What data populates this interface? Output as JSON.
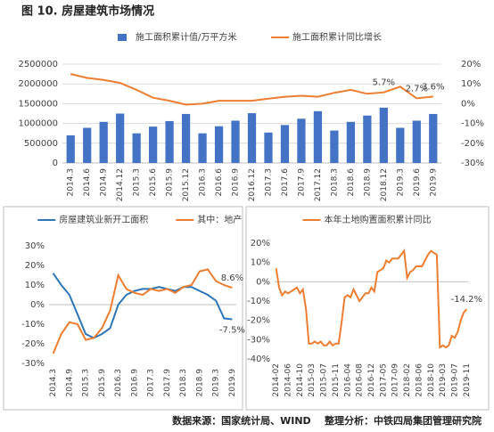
{
  "title": "图 10. 房屋建筑市场情况",
  "source": "数据来源：国家统计局、WIND    整理分析：中铁四局集团管理研究院",
  "chart_data": [
    {
      "type": "bar",
      "legend": "top",
      "grid": true,
      "categories": [
        "2014.3",
        "2014.6",
        "2014.9",
        "2014.12",
        "2015.3",
        "2015.6",
        "2015.9",
        "2015.12",
        "2016.3",
        "2016.6",
        "2016.9",
        "2016.12",
        "2017.3",
        "2017.6",
        "2017.9",
        "2017.12",
        "2018.3",
        "2018.6",
        "2018.9",
        "2018.12",
        "2019.3",
        "2019.6",
        "2019.9"
      ],
      "series": [
        {
          "name": "施工面积累计值/万平方米",
          "type": "bar",
          "color": "#4472c4",
          "values": [
            700000,
            890000,
            1040000,
            1250000,
            750000,
            920000,
            1060000,
            1240000,
            750000,
            930000,
            1070000,
            1260000,
            770000,
            960000,
            1120000,
            1310000,
            820000,
            1040000,
            1200000,
            1400000,
            890000,
            1070000,
            1240000
          ]
        },
        {
          "name": "施工面积累计同比增长",
          "type": "line",
          "axis": "y2",
          "color": "#ed7d31",
          "values": [
            15,
            13,
            12,
            10.5,
            7,
            3,
            1.5,
            -0.5,
            0,
            1.5,
            1.5,
            1.5,
            2.5,
            3.5,
            4,
            3.5,
            5.5,
            7,
            5,
            5.7,
            8.6,
            2.7,
            3.6
          ],
          "value_labels": [
            null,
            null,
            null,
            null,
            null,
            null,
            null,
            null,
            null,
            null,
            null,
            null,
            null,
            null,
            null,
            null,
            null,
            null,
            null,
            "5.7%",
            null,
            "2.7%",
            "3.6%"
          ]
        }
      ],
      "ylim": [
        0,
        2500000
      ],
      "yticks": [
        0,
        500000,
        1000000,
        1500000,
        2000000,
        2500000
      ],
      "y2lim": [
        -30,
        20
      ],
      "y2ticks": [
        {
          "value": -30,
          "label": "-30%"
        },
        {
          "value": -20,
          "label": "-20%"
        },
        {
          "value": -10,
          "label": "-10%"
        },
        {
          "value": 0,
          "label": "0%"
        },
        {
          "value": 10,
          "label": "10%"
        },
        {
          "value": 20,
          "label": "20%"
        }
      ]
    },
    {
      "type": "line",
      "legend": "top",
      "grid": false,
      "categories": [
        "2014.3",
        null,
        "2014.9",
        null,
        "2015.3",
        null,
        "2015.9",
        null,
        "2016.3",
        null,
        "2016.9",
        null,
        "2017.3",
        null,
        "2017.9",
        null,
        "2018.3",
        null,
        "2018.9",
        null,
        "2019.3",
        null,
        "2019.9"
      ],
      "series": [
        {
          "name": "房屋建筑业新开工面积",
          "color": "#2e75b6",
          "values": [
            16,
            10,
            5,
            -5,
            -15,
            -17,
            -15,
            -12,
            0,
            5,
            7,
            8,
            8,
            9,
            8,
            7,
            9,
            9,
            7,
            5,
            2,
            -7,
            -7.5
          ],
          "value_labels": [
            null,
            null,
            null,
            null,
            null,
            null,
            null,
            null,
            null,
            null,
            null,
            null,
            null,
            null,
            null,
            null,
            null,
            null,
            null,
            null,
            null,
            null,
            "-7.5%"
          ]
        },
        {
          "name": "其中：地产",
          "color": "#ed7d31",
          "values": [
            -25,
            -15,
            -9,
            -10,
            -18,
            -17,
            -12,
            -3,
            15,
            8,
            6,
            5,
            8,
            7,
            8,
            6,
            9,
            10,
            17,
            18,
            12,
            10,
            8.6
          ],
          "value_labels": [
            null,
            null,
            null,
            null,
            null,
            null,
            null,
            null,
            null,
            null,
            null,
            null,
            null,
            null,
            null,
            null,
            null,
            null,
            null,
            null,
            null,
            null,
            "8.6%"
          ]
        }
      ],
      "ylim": [
        -30,
        30
      ],
      "yticks": [
        {
          "value": -30,
          "label": "-30%"
        },
        {
          "value": -20,
          "label": "-20%"
        },
        {
          "value": -10,
          "label": "-10%"
        },
        {
          "value": 0,
          "label": "0%"
        },
        {
          "value": 10,
          "label": "10%"
        },
        {
          "value": 20,
          "label": "20%"
        },
        {
          "value": 30,
          "label": "30%"
        }
      ]
    },
    {
      "type": "line",
      "legend": "top",
      "grid": false,
      "categories": [
        "2014-02",
        null,
        null,
        null,
        "2014-06",
        null,
        null,
        null,
        "2014-10",
        null,
        null,
        null,
        "2015-03",
        null,
        null,
        null,
        "2015-07",
        null,
        null,
        null,
        "2015-11",
        null,
        null,
        null,
        "2016-04",
        null,
        null,
        null,
        "2016-08",
        null,
        null,
        null,
        "2016-12",
        null,
        null,
        null,
        "2017-05",
        null,
        null,
        null,
        "2017-09",
        null,
        null,
        null,
        "2018-02",
        null,
        null,
        null,
        "2018-06",
        null,
        null,
        null,
        "2018-10",
        null,
        null,
        null,
        "2019-03",
        null,
        null,
        null,
        "2019-07",
        null,
        null,
        null,
        "2019-11"
      ],
      "series": [
        {
          "name": "本年土地购置面积累计同比",
          "color": "#ed7d31",
          "values": [
            7,
            -3,
            -7,
            -5,
            -6,
            -5,
            -4,
            -3,
            -6,
            -4,
            -14,
            -32,
            -32,
            -31,
            -32,
            -31,
            -33,
            -33,
            -31,
            -33,
            -32,
            -32,
            -21,
            -8,
            -7,
            -8,
            -4,
            -7,
            -10,
            -8,
            -6,
            -6,
            -3,
            -5,
            5,
            6,
            7,
            11,
            10,
            12,
            12,
            12,
            14,
            16,
            2,
            5,
            6,
            8,
            8,
            8,
            11,
            14,
            16,
            15,
            14,
            -34,
            -33,
            -34,
            -33,
            -28,
            -29,
            -26,
            -20,
            -16,
            -14.2
          ],
          "value_labels": [
            null,
            null,
            null,
            null,
            null,
            null,
            null,
            null,
            null,
            null,
            null,
            null,
            null,
            null,
            null,
            null,
            null,
            null,
            null,
            null,
            null,
            null,
            null,
            null,
            null,
            null,
            null,
            null,
            null,
            null,
            null,
            null,
            null,
            null,
            null,
            null,
            null,
            null,
            null,
            null,
            null,
            null,
            null,
            null,
            null,
            null,
            null,
            null,
            null,
            null,
            null,
            null,
            null,
            null,
            null,
            null,
            null,
            null,
            null,
            null,
            null,
            null,
            null,
            null,
            "-14.2%"
          ]
        }
      ],
      "ylim": [
        -40,
        20
      ],
      "yticks": [
        {
          "value": -40,
          "label": "-40%"
        },
        {
          "value": -30,
          "label": "-30%"
        },
        {
          "value": -20,
          "label": "-20%"
        },
        {
          "value": -10,
          "label": "-10%"
        },
        {
          "value": 0,
          "label": "0%"
        },
        {
          "value": 10,
          "label": "10%"
        },
        {
          "value": 20,
          "label": "20%"
        }
      ]
    }
  ]
}
